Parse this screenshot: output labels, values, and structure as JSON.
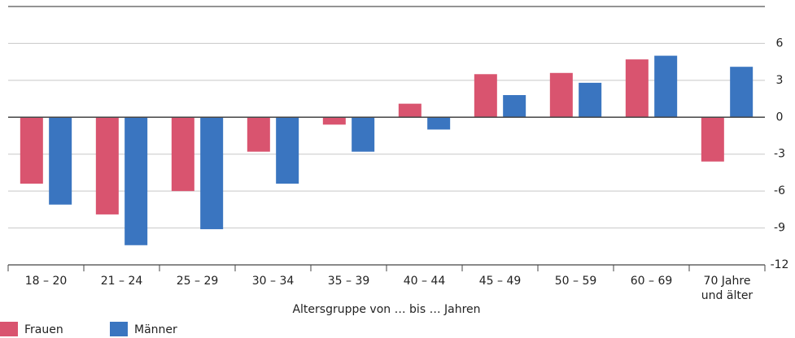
{
  "chart_data": {
    "type": "bar",
    "categories": [
      "18 – 20",
      "21 – 24",
      "25 – 29",
      "30 – 34",
      "35 – 39",
      "40 – 44",
      "45 – 49",
      "50 – 59",
      "60 – 69",
      "70 Jahre\nund älter"
    ],
    "series": [
      {
        "name": "Frauen",
        "color": "#d9546f",
        "values": [
          -5.4,
          -7.9,
          -6.0,
          -2.8,
          -0.6,
          1.1,
          3.5,
          3.6,
          4.7,
          -3.6
        ]
      },
      {
        "name": "Männer",
        "color": "#3a75c0",
        "values": [
          -7.1,
          -10.4,
          -9.1,
          -5.4,
          -2.8,
          -1.0,
          1.8,
          2.8,
          5.0,
          4.1
        ]
      }
    ],
    "x_label": "Altersgruppe von … bis … Jahren",
    "ylim": [
      -12,
      9
    ],
    "yticks": [
      6,
      3,
      0,
      -3,
      -6,
      -9,
      -12
    ],
    "grid": true
  }
}
